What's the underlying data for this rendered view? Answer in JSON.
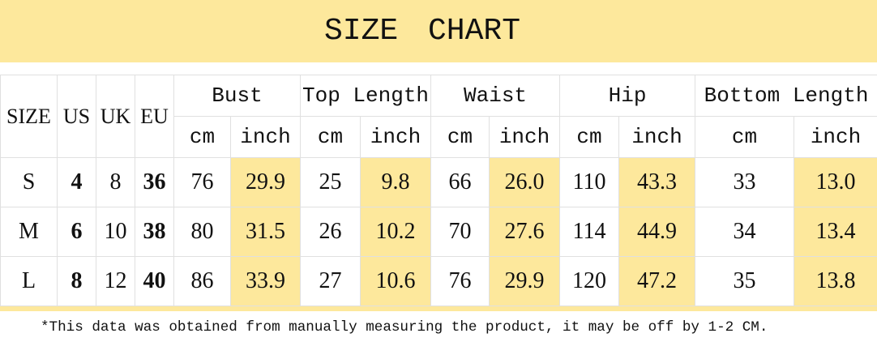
{
  "title": "SIZE  CHART",
  "headers": {
    "size": "SIZE",
    "us": "US",
    "uk": "UK",
    "eu": "EU",
    "groups": [
      "Bust",
      "Top Length",
      "Waist",
      "Hip",
      "Bottom Length"
    ],
    "cm": "cm",
    "inch": "inch"
  },
  "rows": [
    {
      "size": "S",
      "us": "4",
      "uk": "8",
      "eu": "36",
      "vals": [
        "76",
        "29.9",
        "25",
        "9.8",
        "66",
        "26.0",
        "110",
        "43.3",
        "33",
        "13.0"
      ]
    },
    {
      "size": "M",
      "us": "6",
      "uk": "10",
      "eu": "38",
      "vals": [
        "80",
        "31.5",
        "26",
        "10.2",
        "70",
        "27.6",
        "114",
        "44.9",
        "34",
        "13.4"
      ]
    },
    {
      "size": "L",
      "us": "8",
      "uk": "12",
      "eu": "40",
      "vals": [
        "86",
        "33.9",
        "27",
        "10.6",
        "76",
        "29.9",
        "120",
        "47.2",
        "35",
        "13.8"
      ]
    }
  ],
  "footnote": "*This data was obtained from manually measuring the product, it may be off by 1-2 CM.",
  "colors": {
    "highlight": "#fde89c",
    "grid": "#e0e0e0"
  }
}
